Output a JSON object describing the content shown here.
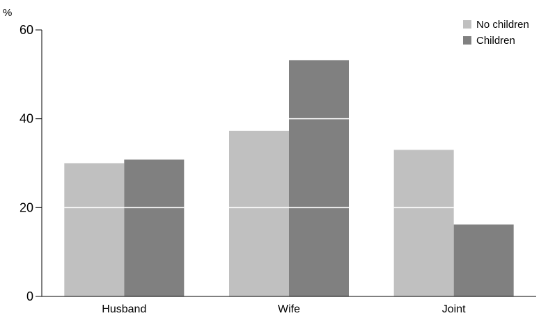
{
  "chart_data": {
    "type": "bar",
    "categories": [
      "Husband",
      "Wife",
      "Joint"
    ],
    "series": [
      {
        "name": "No children",
        "values": [
          30,
          37.3,
          33
        ],
        "color": "#c0c0c0"
      },
      {
        "name": "Children",
        "values": [
          30.8,
          53.2,
          16.2
        ],
        "color": "#808080"
      }
    ],
    "unit": "%",
    "ylim": [
      0,
      60
    ],
    "yticks": [
      0,
      20,
      40,
      60
    ],
    "gridlines": "white lines drawn across bars at tick values",
    "legend": "top-right"
  }
}
